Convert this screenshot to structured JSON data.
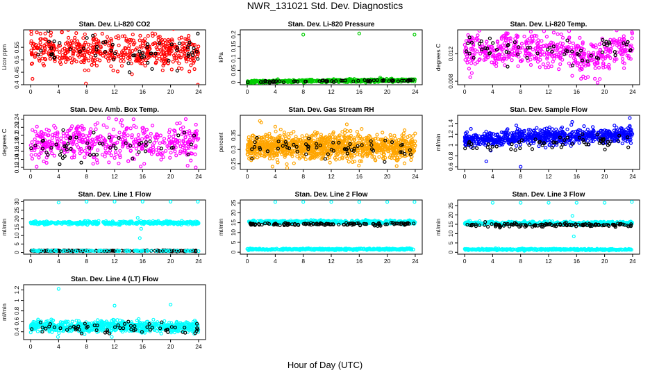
{
  "figure": {
    "title": "NWR_131021  Std. Dev. Diagnostics",
    "xlabel": "Hour of Day (UTC)"
  },
  "chart_data": [
    {
      "type": "scatter",
      "title": "Stan. Dev. Li-820 CO2",
      "ylabel": "Licor ppm",
      "xlim": [
        -1,
        25
      ],
      "ylim": [
        0.4,
        0.62
      ],
      "xticks": [
        0,
        4,
        8,
        12,
        16,
        20,
        24
      ],
      "yticks": [
        0.4,
        0.45,
        0.5,
        0.55
      ],
      "series": [
        {
          "color": "#ff0000",
          "n": 520,
          "center": 0.535,
          "spread": 0.032,
          "outliers": [
            [
              0.1,
              0.615
            ],
            [
              0.9,
              0.61
            ],
            [
              7.9,
              0.405
            ],
            [
              23.9,
              0.4
            ],
            [
              1.4,
              0.605
            ],
            [
              9.2,
              0.6
            ]
          ]
        },
        {
          "color": "#000000",
          "n": 60,
          "center": 0.53,
          "spread": 0.028,
          "outliers": [
            [
              23.9,
              0.605
            ]
          ]
        }
      ]
    },
    {
      "type": "scatter",
      "title": "Stan. Dev. Li-820 Pressure",
      "ylabel": "kPa",
      "xlim": [
        -1,
        25
      ],
      "ylim": [
        -0.01,
        0.22
      ],
      "xticks": [
        0,
        4,
        8,
        12,
        16,
        20,
        24
      ],
      "yticks": [
        0.0,
        0.05,
        0.1,
        0.15,
        0.2
      ],
      "series": [
        {
          "color": "#00cc00",
          "n": 520,
          "center": 0.006,
          "spread": 0.003,
          "trend": 0.0003,
          "outliers": [
            [
              8.0,
              0.2
            ],
            [
              16.0,
              0.205
            ],
            [
              23.9,
              0.2
            ],
            [
              19.0,
              0.02
            ]
          ]
        },
        {
          "color": "#000000",
          "n": 60,
          "center": 0.005,
          "spread": 0.002,
          "trend": 0.0003,
          "outliers": []
        }
      ]
    },
    {
      "type": "scatter",
      "title": "Stan. Dev. Li-820 Temp.",
      "ylabel": "degrees C",
      "xlim": [
        -1,
        25
      ],
      "ylim": [
        0.0075,
        0.0155
      ],
      "xticks": [
        0,
        4,
        8,
        12,
        16,
        20,
        24
      ],
      "yticks": [
        0.008,
        0.012
      ],
      "series": [
        {
          "color": "#ff00ff",
          "n": 520,
          "center": 0.0126,
          "spread": 0.0012,
          "dip": true,
          "outliers": [
            [
              19.0,
              0.0078
            ]
          ]
        },
        {
          "color": "#000000",
          "n": 60,
          "center": 0.0126,
          "spread": 0.001,
          "dip": true,
          "outliers": []
        }
      ]
    },
    {
      "type": "scatter",
      "title": "Stan. Dev. Amb. Box Temp.",
      "ylabel": "degrees C",
      "xlim": [
        -1,
        25
      ],
      "ylim": [
        0.115,
        0.25
      ],
      "xticks": [
        0,
        4,
        8,
        12,
        16,
        20,
        24
      ],
      "yticks": [
        0.12,
        0.14,
        0.16,
        0.18,
        0.2,
        0.22,
        0.24
      ],
      "series": [
        {
          "color": "#ff00ff",
          "n": 480,
          "center": 0.18,
          "spread": 0.024,
          "outliers": [
            [
              23.6,
              0.12
            ]
          ]
        },
        {
          "color": "#000000",
          "n": 55,
          "center": 0.175,
          "spread": 0.018,
          "outliers": []
        }
      ]
    },
    {
      "type": "scatter",
      "title": "Stan. Dev. Gas Stream RH",
      "ylabel": "percent",
      "xlim": [
        -1,
        25
      ],
      "ylim": [
        0.23,
        0.42
      ],
      "xticks": [
        0,
        4,
        8,
        12,
        16,
        20,
        24
      ],
      "yticks": [
        0.25,
        0.3,
        0.35
      ],
      "series": [
        {
          "color": "#ffa500",
          "n": 1100,
          "center": 0.31,
          "spread": 0.022,
          "outliers": [
            [
              1.8,
              0.4
            ],
            [
              2.0,
              0.395
            ],
            [
              4.0,
              0.38
            ],
            [
              3.6,
              0.24
            ]
          ]
        },
        {
          "color": "#000000",
          "n": 60,
          "center": 0.305,
          "spread": 0.016,
          "outliers": []
        }
      ]
    },
    {
      "type": "scatter",
      "title": "Stan. Dev. Sample Flow",
      "ylabel": "ml/min",
      "xlim": [
        -1,
        25
      ],
      "ylim": [
        0.55,
        1.55
      ],
      "xticks": [
        0,
        4,
        8,
        12,
        16,
        20,
        24
      ],
      "yticks": [
        0.6,
        0.8,
        1.0,
        1.2,
        1.4
      ],
      "series": [
        {
          "color": "#0000ff",
          "n": 750,
          "center": 1.15,
          "spread": 0.07,
          "trend": 0.004,
          "outliers": [
            [
              23.6,
              1.5
            ],
            [
              8.0,
              0.6
            ],
            [
              3.1,
              0.7
            ],
            [
              0.9,
              1.3
            ]
          ]
        },
        {
          "color": "#000000",
          "n": 60,
          "center": 1.02,
          "spread": 0.06,
          "trend": 0.005,
          "outliers": []
        }
      ]
    },
    {
      "type": "scatter",
      "title": "Stan. Dev. Line 1 Flow",
      "ylabel": "ml/min",
      "xlim": [
        -1,
        25
      ],
      "ylim": [
        -1,
        31
      ],
      "xticks": [
        0,
        4,
        8,
        12,
        16,
        20,
        24
      ],
      "yticks": [
        0,
        5,
        10,
        15,
        20,
        25,
        30
      ],
      "series": [
        {
          "color": "#00ffff",
          "n": 420,
          "center": 17.5,
          "spread": 0.45,
          "outliers": [
            [
              4.0,
              29.5
            ],
            [
              8.0,
              30
            ],
            [
              12.0,
              30
            ],
            [
              16.0,
              30
            ],
            [
              20.0,
              30
            ],
            [
              23.9,
              30
            ],
            [
              15.6,
              8.5
            ],
            [
              15.3,
              20.5
            ],
            [
              15.8,
              14
            ]
          ]
        },
        {
          "color": "#000000",
          "n": 210,
          "center": 1.0,
          "spread": 0.15,
          "outliers": []
        },
        {
          "color": "#00ffff",
          "n": 80,
          "center": 1.0,
          "spread": 0.15,
          "outliers": []
        }
      ]
    },
    {
      "type": "scatter",
      "title": "Stan. Dev. Line 2 Flow",
      "ylabel": "ml/min",
      "xlim": [
        -1,
        25
      ],
      "ylim": [
        -1,
        26.5
      ],
      "xticks": [
        0,
        4,
        8,
        12,
        16,
        20,
        24
      ],
      "yticks": [
        0,
        5,
        10,
        15,
        20,
        25
      ],
      "series": [
        {
          "color": "#00ffff",
          "n": 420,
          "center": 15.3,
          "spread": 0.45,
          "outliers": [
            [
              4.0,
              25.5
            ],
            [
              8.0,
              25.5
            ],
            [
              12.0,
              25.5
            ],
            [
              16.0,
              25.5
            ],
            [
              20.0,
              25.5
            ],
            [
              23.9,
              25.5
            ]
          ]
        },
        {
          "color": "#000000",
          "n": 130,
          "center": 14.2,
          "spread": 0.35,
          "outliers": []
        },
        {
          "color": "#00ffff",
          "n": 420,
          "center": 1.5,
          "spread": 0.2,
          "outliers": []
        }
      ]
    },
    {
      "type": "scatter",
      "title": "Stan. Dev. Line 3 Flow",
      "ylabel": "ml/min",
      "xlim": [
        -1,
        25
      ],
      "ylim": [
        -1,
        28
      ],
      "xticks": [
        0,
        4,
        8,
        12,
        16,
        20,
        24
      ],
      "yticks": [
        0,
        5,
        10,
        15,
        20,
        25
      ],
      "series": [
        {
          "color": "#00ffff",
          "n": 420,
          "center": 15.6,
          "spread": 0.45,
          "outliers": [
            [
              4.0,
              26.5
            ],
            [
              8.0,
              26.5
            ],
            [
              12.0,
              26.5
            ],
            [
              16.0,
              26.5
            ],
            [
              20.0,
              26.5
            ],
            [
              23.9,
              27
            ],
            [
              15.6,
              8.5
            ],
            [
              15.4,
              19.5
            ]
          ]
        },
        {
          "color": "#000000",
          "n": 130,
          "center": 14.6,
          "spread": 0.5,
          "outliers": []
        },
        {
          "color": "#00ffff",
          "n": 420,
          "center": 1.5,
          "spread": 0.2,
          "outliers": []
        }
      ]
    },
    {
      "type": "scatter",
      "title": "Stan. Dev. Line 4 (LT) Flow",
      "ylabel": "ml/min",
      "xlim": [
        -1,
        25
      ],
      "ylim": [
        0.25,
        1.3
      ],
      "xticks": [
        0,
        4,
        8,
        12,
        16,
        20,
        24
      ],
      "yticks": [
        0.4,
        0.6,
        0.8,
        1.0,
        1.2
      ],
      "series": [
        {
          "color": "#00ffff",
          "n": 700,
          "center": 0.5,
          "spread": 0.05,
          "outliers": [
            [
              4.0,
              1.22
            ],
            [
              12.0,
              0.9
            ],
            [
              20.0,
              0.92
            ],
            [
              11.6,
              0.3
            ],
            [
              3.9,
              0.3
            ]
          ]
        },
        {
          "color": "#000000",
          "n": 60,
          "center": 0.48,
          "spread": 0.06,
          "outliers": []
        }
      ]
    }
  ]
}
